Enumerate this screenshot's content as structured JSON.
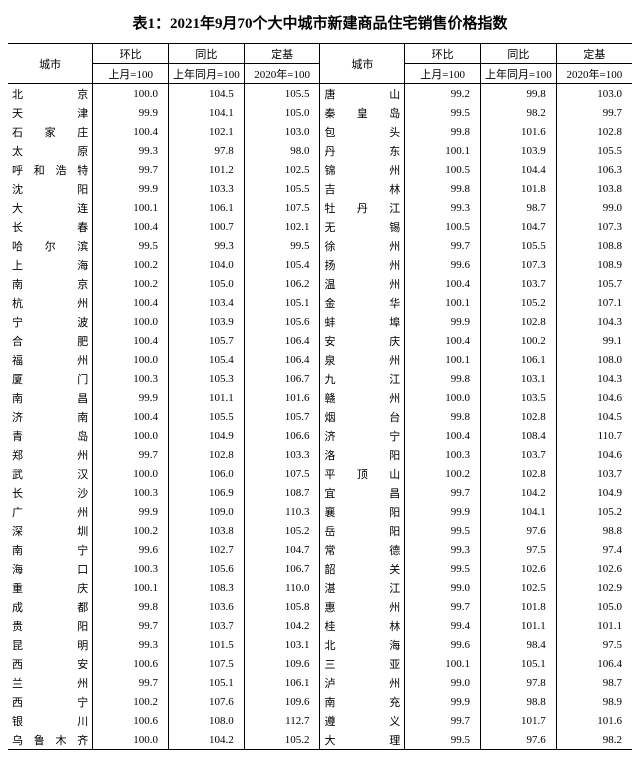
{
  "title": "表1：2021年9月70个大中城市新建商品住宅销售价格指数",
  "headers": {
    "city": "城市",
    "mom": "环比",
    "yoy": "同比",
    "base": "定基",
    "mom_sub": "上月=100",
    "yoy_sub": "上年同月=100",
    "base_sub": "2020年=100"
  },
  "left": [
    {
      "city": "北　　京",
      "mom": "100.0",
      "yoy": "104.5",
      "base": "105.5"
    },
    {
      "city": "天　　津",
      "mom": "99.9",
      "yoy": "104.1",
      "base": "105.0"
    },
    {
      "city": "石 家 庄",
      "mom": "100.4",
      "yoy": "102.1",
      "base": "103.0"
    },
    {
      "city": "太　　原",
      "mom": "99.3",
      "yoy": "97.8",
      "base": "98.0"
    },
    {
      "city": "呼和浩特",
      "mom": "99.7",
      "yoy": "101.2",
      "base": "102.5"
    },
    {
      "city": "沈　　阳",
      "mom": "99.9",
      "yoy": "103.3",
      "base": "105.5"
    },
    {
      "city": "大　　连",
      "mom": "100.1",
      "yoy": "106.1",
      "base": "107.5"
    },
    {
      "city": "长　　春",
      "mom": "100.4",
      "yoy": "100.7",
      "base": "102.1"
    },
    {
      "city": "哈 尔 滨",
      "mom": "99.5",
      "yoy": "99.3",
      "base": "99.5"
    },
    {
      "city": "上　　海",
      "mom": "100.2",
      "yoy": "104.0",
      "base": "105.4"
    },
    {
      "city": "南　　京",
      "mom": "100.2",
      "yoy": "105.0",
      "base": "106.2"
    },
    {
      "city": "杭　　州",
      "mom": "100.4",
      "yoy": "103.4",
      "base": "105.1"
    },
    {
      "city": "宁　　波",
      "mom": "100.0",
      "yoy": "103.9",
      "base": "105.6"
    },
    {
      "city": "合　　肥",
      "mom": "100.4",
      "yoy": "105.7",
      "base": "106.4"
    },
    {
      "city": "福　　州",
      "mom": "100.0",
      "yoy": "105.4",
      "base": "106.4"
    },
    {
      "city": "厦　　门",
      "mom": "100.3",
      "yoy": "105.3",
      "base": "106.7"
    },
    {
      "city": "南　　昌",
      "mom": "99.9",
      "yoy": "101.1",
      "base": "101.6"
    },
    {
      "city": "济　　南",
      "mom": "100.4",
      "yoy": "105.5",
      "base": "105.7"
    },
    {
      "city": "青　　岛",
      "mom": "100.0",
      "yoy": "104.9",
      "base": "106.6"
    },
    {
      "city": "郑　　州",
      "mom": "99.7",
      "yoy": "102.8",
      "base": "103.3"
    },
    {
      "city": "武　　汉",
      "mom": "100.0",
      "yoy": "106.0",
      "base": "107.5"
    },
    {
      "city": "长　　沙",
      "mom": "100.3",
      "yoy": "106.9",
      "base": "108.7"
    },
    {
      "city": "广　　州",
      "mom": "99.9",
      "yoy": "109.0",
      "base": "110.3"
    },
    {
      "city": "深　　圳",
      "mom": "100.2",
      "yoy": "103.8",
      "base": "105.2"
    },
    {
      "city": "南　　宁",
      "mom": "99.6",
      "yoy": "102.7",
      "base": "104.7"
    },
    {
      "city": "海　　口",
      "mom": "100.3",
      "yoy": "105.6",
      "base": "106.7"
    },
    {
      "city": "重　　庆",
      "mom": "100.1",
      "yoy": "108.3",
      "base": "110.0"
    },
    {
      "city": "成　　都",
      "mom": "99.8",
      "yoy": "103.6",
      "base": "105.8"
    },
    {
      "city": "贵　　阳",
      "mom": "99.7",
      "yoy": "103.7",
      "base": "104.2"
    },
    {
      "city": "昆　　明",
      "mom": "99.3",
      "yoy": "101.5",
      "base": "103.1"
    },
    {
      "city": "西　　安",
      "mom": "100.6",
      "yoy": "107.5",
      "base": "109.6"
    },
    {
      "city": "兰　　州",
      "mom": "99.7",
      "yoy": "105.1",
      "base": "106.1"
    },
    {
      "city": "西　　宁",
      "mom": "100.2",
      "yoy": "107.6",
      "base": "109.6"
    },
    {
      "city": "银　　川",
      "mom": "100.6",
      "yoy": "108.0",
      "base": "112.7"
    },
    {
      "city": "乌鲁木齐",
      "mom": "100.0",
      "yoy": "104.2",
      "base": "105.2"
    }
  ],
  "right": [
    {
      "city": "唐　　山",
      "mom": "99.2",
      "yoy": "99.8",
      "base": "103.0"
    },
    {
      "city": "秦 皇 岛",
      "mom": "99.5",
      "yoy": "98.2",
      "base": "99.7"
    },
    {
      "city": "包　　头",
      "mom": "99.8",
      "yoy": "101.6",
      "base": "102.8"
    },
    {
      "city": "丹　　东",
      "mom": "100.1",
      "yoy": "103.9",
      "base": "105.5"
    },
    {
      "city": "锦　　州",
      "mom": "100.5",
      "yoy": "104.4",
      "base": "106.3"
    },
    {
      "city": "吉　　林",
      "mom": "99.8",
      "yoy": "101.8",
      "base": "103.8"
    },
    {
      "city": "牡 丹 江",
      "mom": "99.3",
      "yoy": "98.7",
      "base": "99.0"
    },
    {
      "city": "无　　锡",
      "mom": "100.5",
      "yoy": "104.7",
      "base": "107.3"
    },
    {
      "city": "徐　　州",
      "mom": "99.7",
      "yoy": "105.5",
      "base": "108.8"
    },
    {
      "city": "扬　　州",
      "mom": "99.6",
      "yoy": "107.3",
      "base": "108.9"
    },
    {
      "city": "温　　州",
      "mom": "100.4",
      "yoy": "103.7",
      "base": "105.7"
    },
    {
      "city": "金　　华",
      "mom": "100.1",
      "yoy": "105.2",
      "base": "107.1"
    },
    {
      "city": "蚌　　埠",
      "mom": "99.9",
      "yoy": "102.8",
      "base": "104.3"
    },
    {
      "city": "安　　庆",
      "mom": "100.4",
      "yoy": "100.2",
      "base": "99.1"
    },
    {
      "city": "泉　　州",
      "mom": "100.1",
      "yoy": "106.1",
      "base": "108.0"
    },
    {
      "city": "九　　江",
      "mom": "99.8",
      "yoy": "103.1",
      "base": "104.3"
    },
    {
      "city": "赣　　州",
      "mom": "100.0",
      "yoy": "103.5",
      "base": "104.6"
    },
    {
      "city": "烟　　台",
      "mom": "99.8",
      "yoy": "102.8",
      "base": "104.5"
    },
    {
      "city": "济　　宁",
      "mom": "100.4",
      "yoy": "108.4",
      "base": "110.7"
    },
    {
      "city": "洛　　阳",
      "mom": "100.3",
      "yoy": "103.7",
      "base": "104.6"
    },
    {
      "city": "平 顶 山",
      "mom": "100.2",
      "yoy": "102.8",
      "base": "103.7"
    },
    {
      "city": "宜　　昌",
      "mom": "99.7",
      "yoy": "104.2",
      "base": "104.9"
    },
    {
      "city": "襄　　阳",
      "mom": "99.9",
      "yoy": "104.1",
      "base": "105.2"
    },
    {
      "city": "岳　　阳",
      "mom": "99.5",
      "yoy": "97.6",
      "base": "98.8"
    },
    {
      "city": "常　　德",
      "mom": "99.3",
      "yoy": "97.5",
      "base": "97.4"
    },
    {
      "city": "韶　　关",
      "mom": "99.5",
      "yoy": "102.6",
      "base": "102.6"
    },
    {
      "city": "湛　　江",
      "mom": "99.0",
      "yoy": "102.5",
      "base": "102.9"
    },
    {
      "city": "惠　　州",
      "mom": "99.7",
      "yoy": "101.8",
      "base": "105.0"
    },
    {
      "city": "桂　　林",
      "mom": "99.4",
      "yoy": "101.1",
      "base": "101.1"
    },
    {
      "city": "北　　海",
      "mom": "99.6",
      "yoy": "98.4",
      "base": "97.5"
    },
    {
      "city": "三　　亚",
      "mom": "100.1",
      "yoy": "105.1",
      "base": "106.4"
    },
    {
      "city": "泸　　州",
      "mom": "99.0",
      "yoy": "97.8",
      "base": "98.7"
    },
    {
      "city": "南　　充",
      "mom": "99.9",
      "yoy": "98.8",
      "base": "98.9"
    },
    {
      "city": "遵　　义",
      "mom": "99.7",
      "yoy": "101.7",
      "base": "101.6"
    },
    {
      "city": "大　　理",
      "mom": "99.5",
      "yoy": "97.6",
      "base": "98.2"
    }
  ]
}
